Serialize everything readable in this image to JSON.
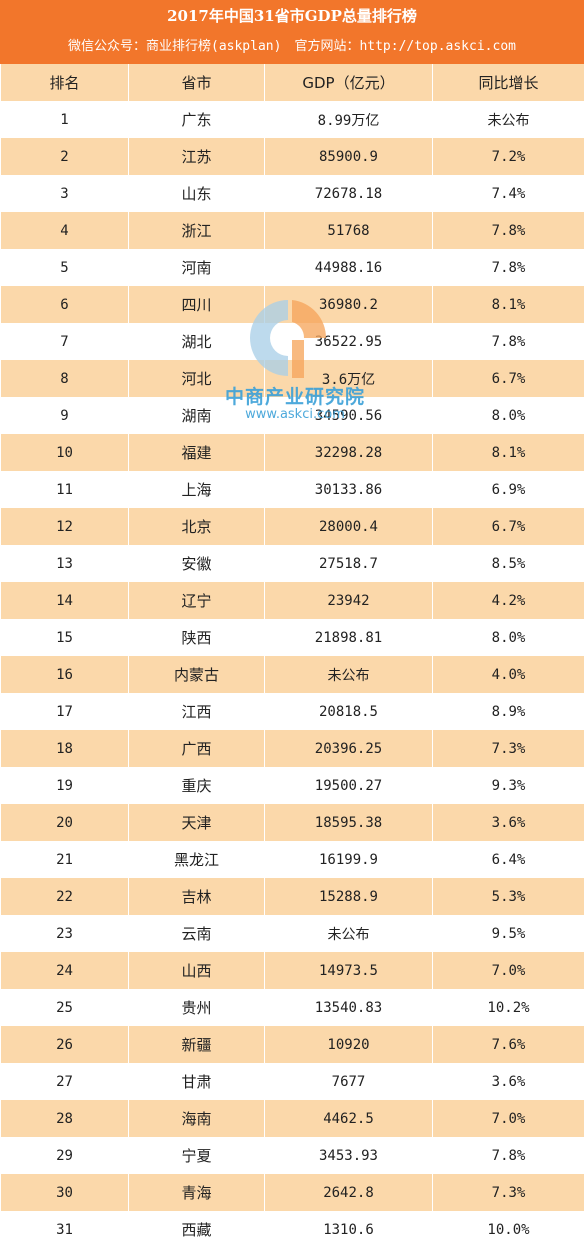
{
  "header": {
    "title": "2017年中国31省市GDP总量排行榜",
    "subtitle": "微信公众号：商业排行榜(askplan)　官方网站：http://top.askci.com"
  },
  "columns": [
    "排名",
    "省市",
    "GDP（亿元）",
    "同比增长"
  ],
  "rows": [
    {
      "rank": "1",
      "province": "广东",
      "gdp": "8.99万亿",
      "growth": "未公布"
    },
    {
      "rank": "2",
      "province": "江苏",
      "gdp": "85900.9",
      "growth": "7.2%"
    },
    {
      "rank": "3",
      "province": "山东",
      "gdp": "72678.18",
      "growth": "7.4%"
    },
    {
      "rank": "4",
      "province": "浙江",
      "gdp": "51768",
      "growth": "7.8%"
    },
    {
      "rank": "5",
      "province": "河南",
      "gdp": "44988.16",
      "growth": "7.8%"
    },
    {
      "rank": "6",
      "province": "四川",
      "gdp": "36980.2",
      "growth": "8.1%"
    },
    {
      "rank": "7",
      "province": "湖北",
      "gdp": "36522.95",
      "growth": "7.8%"
    },
    {
      "rank": "8",
      "province": "河北",
      "gdp": "3.6万亿",
      "growth": "6.7%"
    },
    {
      "rank": "9",
      "province": "湖南",
      "gdp": "34590.56",
      "growth": "8.0%"
    },
    {
      "rank": "10",
      "province": "福建",
      "gdp": "32298.28",
      "growth": "8.1%"
    },
    {
      "rank": "11",
      "province": "上海",
      "gdp": "30133.86",
      "growth": "6.9%"
    },
    {
      "rank": "12",
      "province": "北京",
      "gdp": "28000.4",
      "growth": "6.7%"
    },
    {
      "rank": "13",
      "province": "安徽",
      "gdp": "27518.7",
      "growth": "8.5%"
    },
    {
      "rank": "14",
      "province": "辽宁",
      "gdp": "23942",
      "growth": "4.2%"
    },
    {
      "rank": "15",
      "province": "陕西",
      "gdp": "21898.81",
      "growth": "8.0%"
    },
    {
      "rank": "16",
      "province": "内蒙古",
      "gdp": "未公布",
      "growth": "4.0%"
    },
    {
      "rank": "17",
      "province": "江西",
      "gdp": "20818.5",
      "growth": "8.9%"
    },
    {
      "rank": "18",
      "province": "广西",
      "gdp": "20396.25",
      "growth": "7.3%"
    },
    {
      "rank": "19",
      "province": "重庆",
      "gdp": "19500.27",
      "growth": "9.3%"
    },
    {
      "rank": "20",
      "province": "天津",
      "gdp": "18595.38",
      "growth": "3.6%"
    },
    {
      "rank": "21",
      "province": "黑龙江",
      "gdp": "16199.9",
      "growth": "6.4%"
    },
    {
      "rank": "22",
      "province": "吉林",
      "gdp": "15288.9",
      "growth": "5.3%"
    },
    {
      "rank": "23",
      "province": "云南",
      "gdp": "未公布",
      "growth": "9.5%"
    },
    {
      "rank": "24",
      "province": "山西",
      "gdp": "14973.5",
      "growth": "7.0%"
    },
    {
      "rank": "25",
      "province": "贵州",
      "gdp": "13540.83",
      "growth": "10.2%"
    },
    {
      "rank": "26",
      "province": "新疆",
      "gdp": "10920",
      "growth": "7.6%"
    },
    {
      "rank": "27",
      "province": "甘肃",
      "gdp": "7677",
      "growth": "3.6%"
    },
    {
      "rank": "28",
      "province": "海南",
      "gdp": "4462.5",
      "growth": "7.0%"
    },
    {
      "rank": "29",
      "province": "宁夏",
      "gdp": "3453.93",
      "growth": "7.8%"
    },
    {
      "rank": "30",
      "province": "青海",
      "gdp": "2642.8",
      "growth": "7.3%"
    },
    {
      "rank": "31",
      "province": "西藏",
      "gdp": "1310.6",
      "growth": "10.0%"
    }
  ],
  "watermark": {
    "brand": "中商产业研究院",
    "url": "www.askci.com",
    "logo_icon": "askci-logo-icon"
  },
  "colors": {
    "header_bg": "#f2762b",
    "stripe": "#fbd8aa",
    "watermark": "#3aa0d8"
  }
}
